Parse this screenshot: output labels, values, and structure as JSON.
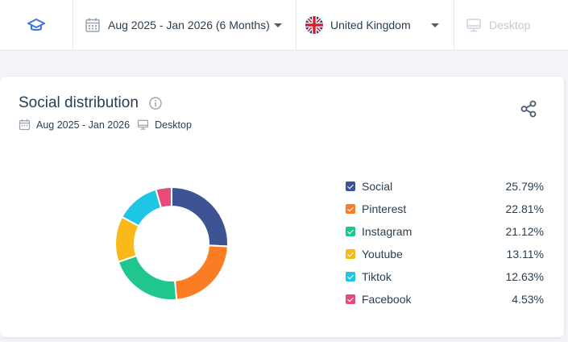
{
  "topbar": {
    "cap_icon": "graduation-cap-icon",
    "date_range": "Aug 2025 - Jan 2026 (6 Months)",
    "country": "United Kingdom",
    "device": "Desktop"
  },
  "card": {
    "title": "Social distribution",
    "sub_date": "Aug 2025 - Jan 2026",
    "sub_device": "Desktop",
    "share_icon": "share-icon"
  },
  "chart_data": {
    "type": "pie",
    "donut": true,
    "categories": [
      "Social",
      "Pinterest",
      "Instagram",
      "Youtube",
      "Tiktok",
      "Facebook"
    ],
    "values": [
      25.79,
      22.81,
      21.12,
      13.11,
      12.63,
      4.53
    ],
    "labels": [
      "25.79%",
      "22.81%",
      "21.12%",
      "13.11%",
      "12.63%",
      "4.53%"
    ],
    "colors": [
      "#3e5393",
      "#fb7d23",
      "#1fc68e",
      "#fbb919",
      "#1ec5e5",
      "#e54b7b"
    ],
    "legend_position": "right"
  }
}
